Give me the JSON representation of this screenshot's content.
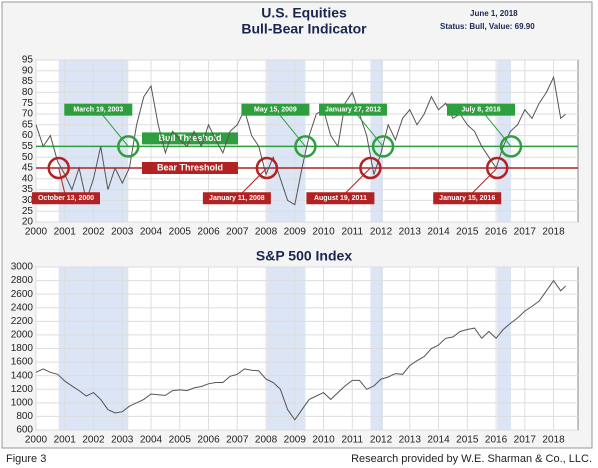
{
  "chart_data": [
    {
      "type": "line",
      "title": "U.S. Equities",
      "subtitle": "Bull-Bear Indicator",
      "date": "June 1, 2018",
      "status": "Status: Bull, Value: 69.90",
      "color": "#555555",
      "grid": true,
      "xlim": [
        2000,
        2018.85
      ],
      "xticks": [
        2000,
        2001,
        2002,
        2003,
        2004,
        2005,
        2006,
        2007,
        2008,
        2009,
        2010,
        2011,
        2012,
        2013,
        2014,
        2015,
        2016,
        2017,
        2018
      ],
      "ylim": [
        20,
        95
      ],
      "yticks": [
        20,
        25,
        30,
        35,
        40,
        45,
        50,
        55,
        60,
        65,
        70,
        75,
        80,
        85,
        90,
        95
      ],
      "shaded_periods": [
        [
          2000.79,
          2003.21
        ],
        [
          2008.03,
          2009.37
        ],
        [
          2011.63,
          2012.07
        ],
        [
          2016.04,
          2016.52
        ]
      ],
      "thresholds": [
        {
          "label": "Bull Threshold",
          "value": 55,
          "color": "#2e9e3e"
        },
        {
          "label": "Bear Threshold",
          "value": 45,
          "color": "#b22222"
        }
      ],
      "annotations": [
        {
          "label": "March 19, 2003",
          "x": 2003.21,
          "y": 55,
          "color": "#2e9e3e"
        },
        {
          "label": "May 15, 2009",
          "x": 2009.37,
          "y": 55,
          "color": "#2e9e3e"
        },
        {
          "label": "January 27, 2012",
          "x": 2012.07,
          "y": 55,
          "color": "#2e9e3e"
        },
        {
          "label": "July 8, 2016",
          "x": 2016.52,
          "y": 55,
          "color": "#2e9e3e"
        },
        {
          "label": "October 13, 2000",
          "x": 2000.79,
          "y": 45,
          "color": "#b22222"
        },
        {
          "label": "January 11, 2008",
          "x": 2008.03,
          "y": 45,
          "color": "#b22222"
        },
        {
          "label": "August 19, 2011",
          "x": 2011.63,
          "y": 45,
          "color": "#b22222"
        },
        {
          "label": "January 15, 2016",
          "x": 2016.04,
          "y": 45,
          "color": "#b22222"
        }
      ],
      "x": [
        2000,
        2000.25,
        2000.5,
        2000.75,
        2001,
        2001.25,
        2001.5,
        2001.75,
        2002,
        2002.25,
        2002.5,
        2002.75,
        2003,
        2003.25,
        2003.5,
        2003.75,
        2004,
        2004.25,
        2004.5,
        2004.75,
        2005,
        2005.25,
        2005.5,
        2005.75,
        2006,
        2006.25,
        2006.5,
        2006.75,
        2007,
        2007.25,
        2007.5,
        2007.75,
        2008,
        2008.25,
        2008.5,
        2008.75,
        2009,
        2009.25,
        2009.5,
        2009.75,
        2010,
        2010.25,
        2010.5,
        2010.75,
        2011,
        2011.25,
        2011.5,
        2011.75,
        2012,
        2012.25,
        2012.5,
        2012.75,
        2013,
        2013.25,
        2013.5,
        2013.75,
        2014,
        2014.25,
        2014.5,
        2014.75,
        2015,
        2015.25,
        2015.5,
        2015.75,
        2016,
        2016.25,
        2016.5,
        2016.75,
        2017,
        2017.25,
        2017.5,
        2017.75,
        2018,
        2018.25,
        2018.42
      ],
      "values": [
        65,
        55,
        60,
        48,
        42,
        35,
        45,
        30,
        40,
        55,
        35,
        45,
        38,
        45,
        65,
        78,
        83,
        65,
        52,
        62,
        58,
        55,
        62,
        55,
        65,
        58,
        52,
        62,
        65,
        72,
        60,
        55,
        42,
        50,
        40,
        30,
        28,
        45,
        60,
        70,
        72,
        60,
        55,
        75,
        80,
        70,
        60,
        42,
        52,
        65,
        58,
        68,
        72,
        65,
        70,
        78,
        72,
        75,
        68,
        70,
        65,
        62,
        55,
        50,
        45,
        55,
        62,
        65,
        72,
        68,
        75,
        80,
        87,
        68,
        69.9
      ]
    },
    {
      "type": "line",
      "title": "S&P 500 Index",
      "color": "#555555",
      "grid": true,
      "xlim": [
        2000,
        2018.85
      ],
      "xticks": [
        2000,
        2001,
        2002,
        2003,
        2004,
        2005,
        2006,
        2007,
        2008,
        2009,
        2010,
        2011,
        2012,
        2013,
        2014,
        2015,
        2016,
        2017,
        2018
      ],
      "ylim": [
        600,
        3000
      ],
      "yticks": [
        600,
        800,
        1000,
        1200,
        1400,
        1600,
        1800,
        2000,
        2200,
        2400,
        2600,
        2800,
        3000
      ],
      "shaded_periods": [
        [
          2000.79,
          2003.21
        ],
        [
          2008.03,
          2009.37
        ],
        [
          2011.63,
          2012.07
        ],
        [
          2016.04,
          2016.52
        ]
      ],
      "x": [
        2000,
        2000.25,
        2000.5,
        2000.75,
        2001,
        2001.25,
        2001.5,
        2001.75,
        2002,
        2002.25,
        2002.5,
        2002.75,
        2003,
        2003.25,
        2003.5,
        2003.75,
        2004,
        2004.25,
        2004.5,
        2004.75,
        2005,
        2005.25,
        2005.5,
        2005.75,
        2006,
        2006.25,
        2006.5,
        2006.75,
        2007,
        2007.25,
        2007.5,
        2007.75,
        2008,
        2008.25,
        2008.5,
        2008.75,
        2009,
        2009.25,
        2009.5,
        2009.75,
        2010,
        2010.25,
        2010.5,
        2010.75,
        2011,
        2011.25,
        2011.5,
        2011.75,
        2012,
        2012.25,
        2012.5,
        2012.75,
        2013,
        2013.25,
        2013.5,
        2013.75,
        2014,
        2014.25,
        2014.5,
        2014.75,
        2015,
        2015.25,
        2015.5,
        2015.75,
        2016,
        2016.25,
        2016.5,
        2016.75,
        2017,
        2017.25,
        2017.5,
        2017.75,
        2018,
        2018.25,
        2018.42
      ],
      "values": [
        1450,
        1500,
        1450,
        1420,
        1320,
        1250,
        1180,
        1100,
        1150,
        1050,
        900,
        850,
        870,
        950,
        1000,
        1050,
        1130,
        1120,
        1110,
        1180,
        1190,
        1180,
        1220,
        1240,
        1280,
        1300,
        1300,
        1390,
        1420,
        1500,
        1480,
        1470,
        1350,
        1300,
        1200,
        900,
        750,
        900,
        1050,
        1100,
        1150,
        1050,
        1150,
        1250,
        1330,
        1330,
        1200,
        1250,
        1350,
        1380,
        1430,
        1420,
        1550,
        1620,
        1680,
        1800,
        1850,
        1950,
        1970,
        2050,
        2080,
        2100,
        1950,
        2050,
        1950,
        2080,
        2170,
        2250,
        2350,
        2420,
        2500,
        2650,
        2800,
        2650,
        2720
      ]
    }
  ],
  "footer": {
    "figure": "Figure 3",
    "credit": "Research provided by W.E. Sharman & Co., LLC."
  }
}
